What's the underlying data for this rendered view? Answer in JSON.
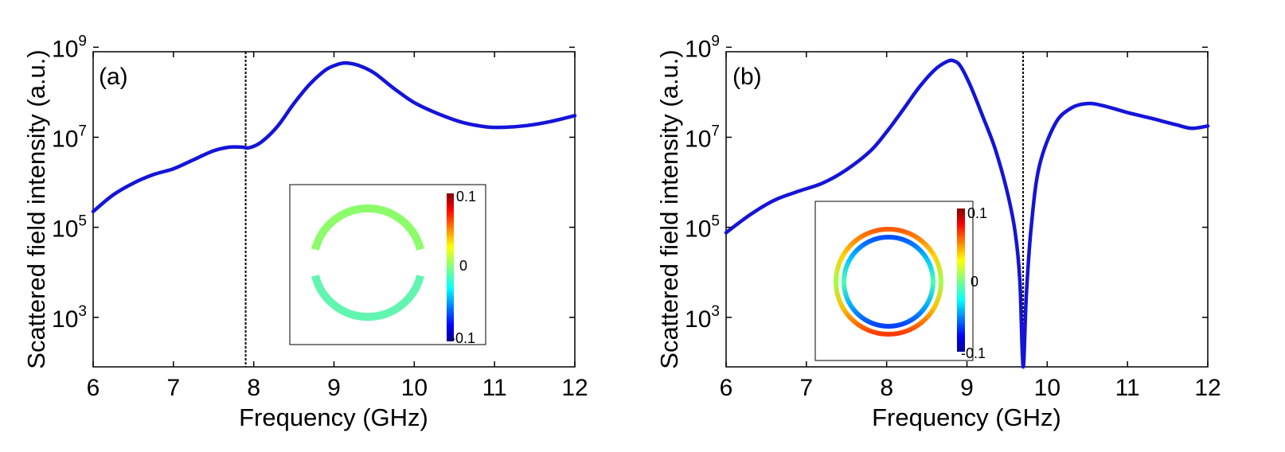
{
  "chart_data": [
    {
      "type": "line",
      "panel_label": "(a)",
      "xlabel": "Frequency (GHz)",
      "ylabel": "Scattered field intensity (a.u.)",
      "xlim": [
        6,
        12
      ],
      "ylim_log10": [
        1.9,
        8.9
      ],
      "xticks": [
        "6",
        "7",
        "8",
        "9",
        "10",
        "11",
        "12"
      ],
      "yticks": [
        {
          "base": "10",
          "exp": "3",
          "log10": 3
        },
        {
          "base": "10",
          "exp": "5",
          "log10": 5
        },
        {
          "base": "10",
          "exp": "7",
          "log10": 7
        },
        {
          "base": "10",
          "exp": "9",
          "log10": 9
        }
      ],
      "series": [
        {
          "name": "scattered intensity",
          "color": "#1414d9",
          "x": [
            6.0,
            6.25,
            6.5,
            6.75,
            7.0,
            7.25,
            7.5,
            7.7,
            7.85,
            7.95,
            8.1,
            8.3,
            8.5,
            8.7,
            8.9,
            9.05,
            9.15,
            9.3,
            9.5,
            9.75,
            10.0,
            10.3,
            10.6,
            10.9,
            11.1,
            11.4,
            11.7,
            12.0
          ],
          "log10_y": [
            5.35,
            5.72,
            5.98,
            6.17,
            6.3,
            6.5,
            6.7,
            6.78,
            6.78,
            6.77,
            6.9,
            7.25,
            7.75,
            8.18,
            8.5,
            8.62,
            8.65,
            8.6,
            8.43,
            8.08,
            7.77,
            7.52,
            7.33,
            7.23,
            7.22,
            7.26,
            7.35,
            7.48
          ]
        }
      ],
      "marker_line": {
        "x": 7.9,
        "style": "dashed",
        "color": "#000000"
      },
      "inset": {
        "type": "field-map",
        "shape": "split-ring",
        "colorbar_min_label": "-0.1",
        "colorbar_mid_label": "0",
        "colorbar_max_label": "0.1",
        "colorbar_range": [
          -0.1,
          0.1
        ],
        "ring_values": [
          0.01,
          -0.015
        ],
        "gap_deg": 14
      }
    },
    {
      "type": "line",
      "panel_label": "(b)",
      "xlabel": "Frequency (GHz)",
      "ylabel": "Scattered field intensity (a.u.)",
      "xlim": [
        6,
        12
      ],
      "ylim_log10": [
        1.9,
        8.9
      ],
      "xticks": [
        "6",
        "7",
        "8",
        "9",
        "10",
        "11",
        "12"
      ],
      "yticks": [
        {
          "base": "10",
          "exp": "3",
          "log10": 3
        },
        {
          "base": "10",
          "exp": "5",
          "log10": 5
        },
        {
          "base": "10",
          "exp": "7",
          "log10": 7
        },
        {
          "base": "10",
          "exp": "9",
          "log10": 9
        }
      ],
      "series": [
        {
          "name": "scattered intensity",
          "color": "#1414d9",
          "x": [
            6.0,
            6.3,
            6.6,
            6.9,
            7.2,
            7.5,
            7.8,
            8.0,
            8.2,
            8.4,
            8.6,
            8.75,
            8.83,
            8.92,
            9.05,
            9.2,
            9.35,
            9.5,
            9.6,
            9.66,
            9.7,
            9.74,
            9.8,
            9.9,
            10.1,
            10.3,
            10.5,
            10.7,
            11.0,
            11.3,
            11.6,
            11.8,
            12.0
          ],
          "log10_y": [
            4.88,
            5.28,
            5.6,
            5.8,
            5.98,
            6.28,
            6.7,
            7.12,
            7.6,
            8.1,
            8.5,
            8.68,
            8.7,
            8.58,
            8.12,
            7.45,
            6.75,
            5.8,
            4.9,
            3.8,
            1.9,
            3.5,
            5.0,
            6.35,
            7.3,
            7.65,
            7.75,
            7.7,
            7.55,
            7.42,
            7.28,
            7.2,
            7.25
          ]
        }
      ],
      "marker_line": {
        "x": 9.7,
        "style": "dashed",
        "color": "#000000"
      },
      "inset": {
        "type": "field-map",
        "shape": "double-ring",
        "colorbar_min_label": "-0.1",
        "colorbar_mid_label": "0",
        "colorbar_max_label": "0.1",
        "colorbar_range": [
          -0.1,
          0.1
        ],
        "outer_gradient": {
          "left": 0.01,
          "top": 0.06,
          "bottom": 0.075
        },
        "inner_gradient": {
          "left": -0.012,
          "top": -0.06,
          "bottom": -0.075
        }
      }
    }
  ]
}
